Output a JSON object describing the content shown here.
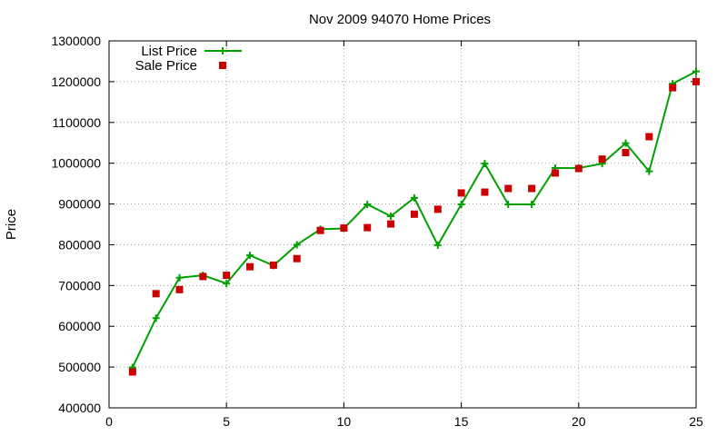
{
  "chart_data": {
    "type": "line",
    "title": "Nov 2009 94070 Home Prices",
    "xlabel": "",
    "ylabel": "Price",
    "xlim": [
      0,
      25
    ],
    "ylim": [
      400000,
      1300000
    ],
    "xticks": [
      0,
      5,
      10,
      15,
      20,
      25
    ],
    "yticks": [
      400000,
      500000,
      600000,
      700000,
      800000,
      900000,
      1000000,
      1100000,
      1200000,
      1300000
    ],
    "grid": true,
    "legend_position": "top-left",
    "series": [
      {
        "name": "List Price",
        "style": "line-with-plus-markers",
        "color": "#00a000",
        "x": [
          1,
          2,
          3,
          4,
          5,
          6,
          7,
          8,
          9,
          10,
          11,
          12,
          13,
          14,
          15,
          16,
          17,
          18,
          19,
          20,
          21,
          22,
          23,
          24,
          25
        ],
        "y": [
          499000,
          620000,
          719000,
          725000,
          705000,
          774000,
          749000,
          800000,
          838000,
          840000,
          899000,
          870000,
          915000,
          799000,
          899000,
          999000,
          899000,
          899000,
          988000,
          988000,
          999000,
          1049000,
          980000,
          1195000,
          1225000
        ]
      },
      {
        "name": "Sale Price",
        "style": "square-markers",
        "color": "#cc0000",
        "x": [
          1,
          2,
          3,
          4,
          5,
          6,
          7,
          8,
          9,
          10,
          11,
          12,
          13,
          14,
          15,
          16,
          17,
          18,
          19,
          20,
          21,
          22,
          23,
          24,
          25
        ],
        "y": [
          488000,
          680000,
          690000,
          722000,
          725000,
          746000,
          750000,
          766000,
          835000,
          841000,
          842000,
          851000,
          875000,
          887000,
          927000,
          929000,
          938000,
          938000,
          976000,
          987000,
          1010000,
          1026000,
          1065000,
          1185000,
          1200000
        ]
      }
    ]
  }
}
